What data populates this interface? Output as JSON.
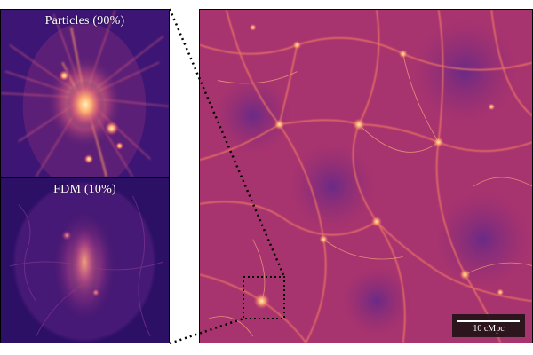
{
  "panels": {
    "particles": {
      "label": "Particles (90%)"
    },
    "fdm": {
      "label": "FDM (10%)"
    }
  },
  "scalebar": {
    "label": "10 cMpc"
  },
  "colors": {
    "background_deep": "#2a0f62",
    "void_violet": "#3a1572",
    "midtone_magenta": "#8e2a74",
    "filament_orange": "#ff8a55",
    "node_yellow": "#ffe9a8"
  },
  "icons": {
    "zoom_box": "dotted-rectangle",
    "connector": "dotted-line"
  }
}
